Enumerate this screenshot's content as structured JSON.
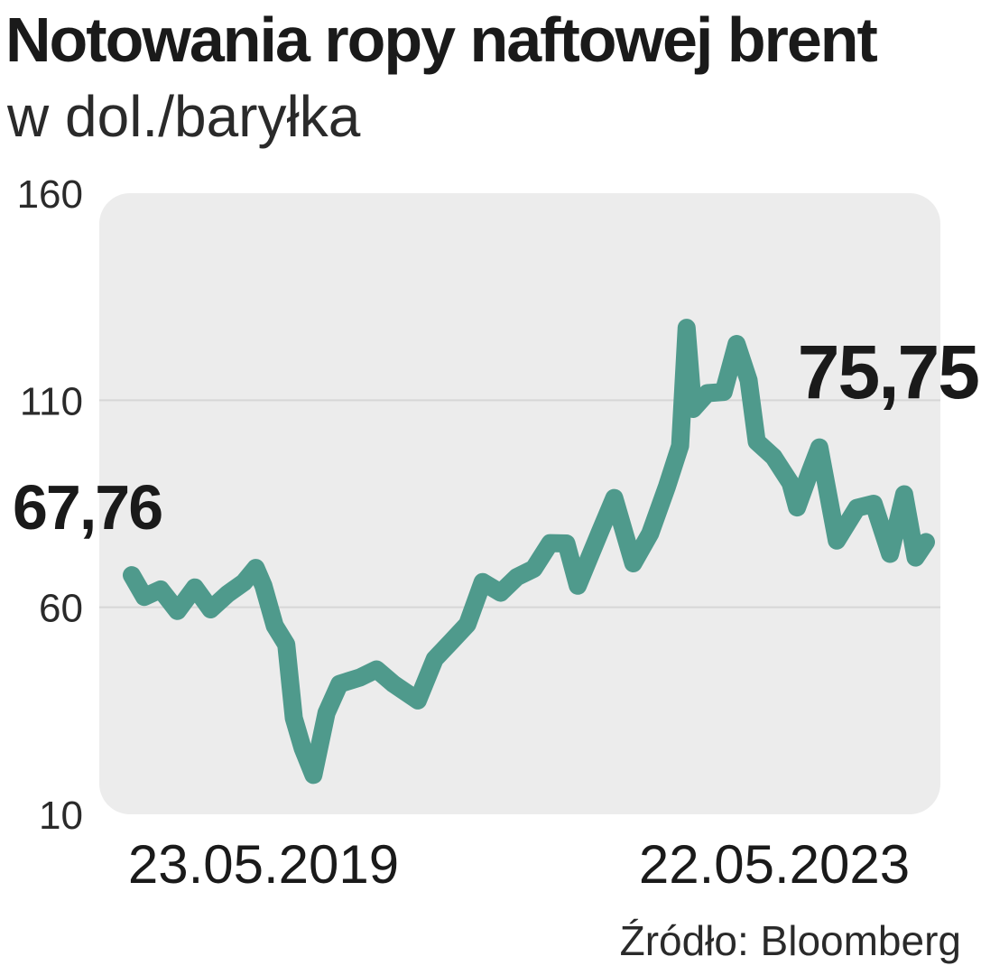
{
  "header": {
    "title": "Notowania ropy naftowej brent",
    "subtitle": "w dol./baryłka"
  },
  "footer": {
    "source": "Źródło: Bloomberg"
  },
  "colors": {
    "line": "#4f9a8c",
    "panel": "#ececec",
    "grid": "#d6d6d6",
    "text": "#1a1a1a"
  },
  "chart_data": {
    "type": "line",
    "title": "Notowania ropy naftowej brent",
    "subtitle": "w dol./baryłka",
    "ylim": [
      10,
      160
    ],
    "yticks": [
      10,
      60,
      110,
      160
    ],
    "ytick_labels": [
      "10",
      "60",
      "110",
      "160"
    ],
    "grid": "horizontal",
    "x_start_label": "23.05.2019",
    "x_end_label": "22.05.2023",
    "start_value_label": "67,76",
    "end_value_label": "75,75",
    "series": [
      {
        "x": [
          "2019-05-23",
          "2019-06-15",
          "2019-07-15",
          "2019-08-15",
          "2019-09-16",
          "2019-10-15",
          "2019-11-15",
          "2019-12-15",
          "2020-01-06",
          "2020-01-20",
          "2020-02-10",
          "2020-03-02",
          "2020-03-16",
          "2020-04-01",
          "2020-04-21",
          "2020-05-15",
          "2020-06-08",
          "2020-07-15",
          "2020-08-15",
          "2020-09-15",
          "2020-10-30",
          "2020-11-30",
          "2020-12-31",
          "2021-01-29",
          "2021-02-26",
          "2021-03-31",
          "2021-04-30",
          "2021-05-31",
          "2021-06-30",
          "2021-07-30",
          "2021-08-20",
          "2021-09-30",
          "2021-10-26",
          "2021-11-30",
          "2021-12-31",
          "2022-01-31",
          "2022-02-24",
          "2022-03-08",
          "2022-03-20",
          "2022-04-15",
          "2022-05-15",
          "2022-06-08",
          "2022-06-30",
          "2022-07-15",
          "2022-08-15",
          "2022-09-15",
          "2022-09-27",
          "2022-10-20",
          "2022-11-07",
          "2022-12-09",
          "2023-01-15",
          "2023-02-15",
          "2023-03-17",
          "2023-04-12",
          "2023-05-03",
          "2023-05-22"
        ],
        "values": [
          67.76,
          62.5,
          64.3,
          59.1,
          64.8,
          59.5,
          63.2,
          66.0,
          69.5,
          65.2,
          55.5,
          51.0,
          33.2,
          26.0,
          19.5,
          34.5,
          41.5,
          43.0,
          45.0,
          41.5,
          37.5,
          47.5,
          51.8,
          55.9,
          66.1,
          63.5,
          67.3,
          69.3,
          75.5,
          75.4,
          65.2,
          78.3,
          86.4,
          70.6,
          77.8,
          89.2,
          99.0,
          127.5,
          107.9,
          111.7,
          112.0,
          123.6,
          114.8,
          100.0,
          96.3,
          90.0,
          84.1,
          92.4,
          98.6,
          76.1,
          84.0,
          85.0,
          72.9,
          87.3,
          72.0,
          75.75
        ]
      }
    ]
  }
}
